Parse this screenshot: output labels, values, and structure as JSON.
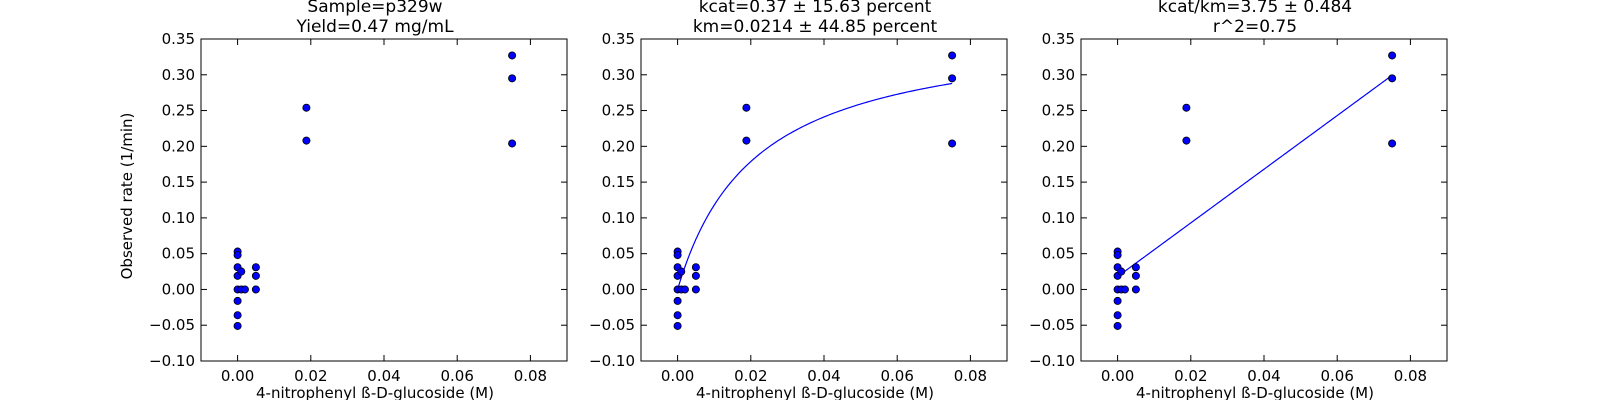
{
  "chart_data": [
    {
      "type": "scatter",
      "title_lines": [
        "Sample=p329w",
        "Yield=0.47 mg/mL"
      ],
      "xlabel": "4-nitrophenyl ß-D-glucoside (M)",
      "ylabel": "Observed rate (1/min)",
      "xlim": [
        -0.01,
        0.09
      ],
      "ylim": [
        -0.1,
        0.35
      ],
      "xticks": [
        "0.00",
        "0.02",
        "0.04",
        "0.06",
        "0.08"
      ],
      "yticks": [
        "−0.10",
        "−0.05",
        "0.00",
        "0.05",
        "0.10",
        "0.15",
        "0.20",
        "0.25",
        "0.30",
        "0.35"
      ],
      "series": [
        {
          "points": [
            [
              0.0,
              0.053
            ],
            [
              0.0,
              0.048
            ],
            [
              0.0,
              0.031
            ],
            [
              0.0,
              0.019
            ],
            [
              0.0,
              0.0
            ],
            [
              0.0,
              -0.016
            ],
            [
              0.0,
              -0.036
            ],
            [
              0.0,
              -0.051
            ],
            [
              0.001,
              0.0
            ],
            [
              0.001,
              0.025
            ],
            [
              0.002,
              0.0
            ],
            [
              0.005,
              0.031
            ],
            [
              0.005,
              0.019
            ],
            [
              0.005,
              0.0
            ],
            [
              0.0188,
              0.254
            ],
            [
              0.0188,
              0.208
            ],
            [
              0.075,
              0.327
            ],
            [
              0.075,
              0.295
            ],
            [
              0.075,
              0.204
            ]
          ]
        }
      ]
    },
    {
      "type": "scatter",
      "title_lines": [
        "kcat=0.37 ± 15.63 percent",
        "km=0.0214 ± 44.85 percent"
      ],
      "xlabel": "4-nitrophenyl ß-D-glucoside (M)",
      "ylabel": "",
      "xlim": [
        -0.01,
        0.09
      ],
      "ylim": [
        -0.1,
        0.35
      ],
      "xticks": [
        "0.00",
        "0.02",
        "0.04",
        "0.06",
        "0.08"
      ],
      "yticks": [
        "−0.10",
        "−0.05",
        "0.00",
        "0.05",
        "0.10",
        "0.15",
        "0.20",
        "0.25",
        "0.30",
        "0.35"
      ],
      "series": [
        {
          "points": [
            [
              0.0,
              0.053
            ],
            [
              0.0,
              0.048
            ],
            [
              0.0,
              0.031
            ],
            [
              0.0,
              0.019
            ],
            [
              0.0,
              0.0
            ],
            [
              0.0,
              -0.016
            ],
            [
              0.0,
              -0.036
            ],
            [
              0.0,
              -0.051
            ],
            [
              0.001,
              0.0
            ],
            [
              0.001,
              0.025
            ],
            [
              0.002,
              0.0
            ],
            [
              0.005,
              0.031
            ],
            [
              0.005,
              0.019
            ],
            [
              0.005,
              0.0
            ],
            [
              0.0188,
              0.254
            ],
            [
              0.0188,
              0.208
            ],
            [
              0.075,
              0.327
            ],
            [
              0.075,
              0.295
            ],
            [
              0.075,
              0.204
            ]
          ]
        }
      ],
      "fit": {
        "model": "michaelis-menten",
        "kcat": 0.37,
        "km": 0.0214,
        "x_range": [
          0.0,
          0.075
        ]
      }
    },
    {
      "type": "scatter",
      "title_lines": [
        "kcat/km=3.75 ± 0.484",
        "r^2=0.75"
      ],
      "xlabel": "4-nitrophenyl ß-D-glucoside (M)",
      "ylabel": "",
      "xlim": [
        -0.01,
        0.09
      ],
      "ylim": [
        -0.1,
        0.35
      ],
      "xticks": [
        "0.00",
        "0.02",
        "0.04",
        "0.06",
        "0.08"
      ],
      "yticks": [
        "−0.10",
        "−0.05",
        "0.00",
        "0.05",
        "0.10",
        "0.15",
        "0.20",
        "0.25",
        "0.30",
        "0.35"
      ],
      "series": [
        {
          "points": [
            [
              0.0,
              0.053
            ],
            [
              0.0,
              0.048
            ],
            [
              0.0,
              0.031
            ],
            [
              0.0,
              0.019
            ],
            [
              0.0,
              0.0
            ],
            [
              0.0,
              -0.016
            ],
            [
              0.0,
              -0.036
            ],
            [
              0.0,
              -0.051
            ],
            [
              0.001,
              0.0
            ],
            [
              0.001,
              0.025
            ],
            [
              0.002,
              0.0
            ],
            [
              0.005,
              0.031
            ],
            [
              0.005,
              0.019
            ],
            [
              0.005,
              0.0
            ],
            [
              0.0188,
              0.254
            ],
            [
              0.0188,
              0.208
            ],
            [
              0.075,
              0.327
            ],
            [
              0.075,
              0.295
            ],
            [
              0.075,
              0.204
            ]
          ]
        }
      ],
      "fit": {
        "model": "linear",
        "slope": 3.75,
        "intercept": 0.018,
        "x_range": [
          0.0,
          0.075
        ]
      }
    }
  ],
  "colors": {
    "points": "#0000ff",
    "fit_line": "#0000ff"
  }
}
